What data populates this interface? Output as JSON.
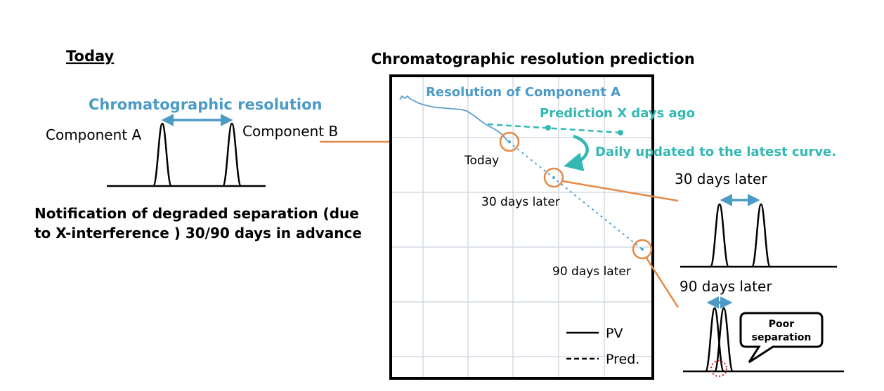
{
  "colors": {
    "orange": "#e58a46",
    "blue": "#4c9ac6",
    "teal": "#33b8b3",
    "black": "#000000",
    "grid": "#c9d3dd",
    "red_dot": "#d0202a"
  },
  "left_panel": {
    "heading": "Today",
    "resolution_label": "Chromatographic resolution",
    "component_a": "Component A",
    "component_b": "Component B",
    "notice_line1": "Notification of degraded separation (due",
    "notice_line2": "to X-interference ) 30/90 days in advance"
  },
  "chart": {
    "title": "Chromatographic resolution prediction",
    "series_label": "Resolution of Component A",
    "prediction_label": "Prediction X days ago",
    "update_label": "Daily updated to the latest curve.",
    "point_today": "Today",
    "point_30": "30 days later",
    "point_90": "90 days later",
    "legend_pv": "PV",
    "legend_pred": "Pred."
  },
  "right_panel": {
    "label_30": "30 days later",
    "label_90": "90 days later",
    "callout_line1": "Poor",
    "callout_line2": "separation"
  },
  "icons": [
    "double-arrow-icon",
    "curved-arrow-icon",
    "dotted-circle-icon"
  ]
}
